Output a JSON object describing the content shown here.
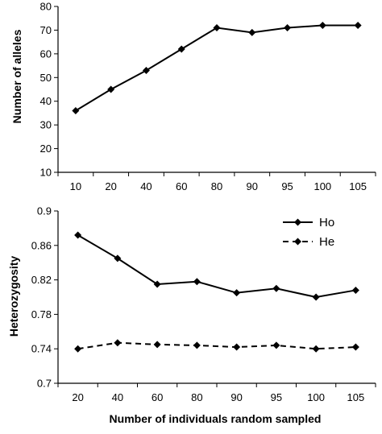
{
  "chart_data": [
    {
      "type": "line",
      "title": "",
      "xlabel": "",
      "ylabel": "Number of alleles",
      "categories": [
        "10",
        "20",
        "40",
        "60",
        "80",
        "90",
        "95",
        "100",
        "105"
      ],
      "ylim": [
        10,
        80
      ],
      "yticks": [
        "10",
        "20",
        "30",
        "40",
        "50",
        "60",
        "70",
        "80"
      ],
      "grid": false,
      "legend": false,
      "series": [
        {
          "values": [
            36,
            45,
            53,
            62,
            71,
            69,
            71,
            72,
            72
          ],
          "line_style": "solid",
          "marker": "diamond",
          "color": "#000000"
        }
      ]
    },
    {
      "type": "line",
      "title": "",
      "xlabel": "Number of individuals random sampled",
      "ylabel": "Heterozygosity",
      "categories": [
        "20",
        "40",
        "60",
        "80",
        "90",
        "95",
        "100",
        "105"
      ],
      "ylim": [
        0.7,
        0.9
      ],
      "yticks": [
        "0.7",
        "0.74",
        "0.78",
        "0.82",
        "0.86",
        "0.9"
      ],
      "grid": false,
      "legend": "top-right",
      "series": [
        {
          "name": "Ho",
          "values": [
            0.872,
            0.845,
            0.815,
            0.818,
            0.805,
            0.81,
            0.8,
            0.808
          ],
          "line_style": "solid",
          "marker": "diamond",
          "color": "#000000"
        },
        {
          "name": "He",
          "values": [
            0.74,
            0.747,
            0.745,
            0.744,
            0.742,
            0.744,
            0.74,
            0.742
          ],
          "line_style": "dashed",
          "marker": "diamond",
          "color": "#000000"
        }
      ]
    }
  ]
}
